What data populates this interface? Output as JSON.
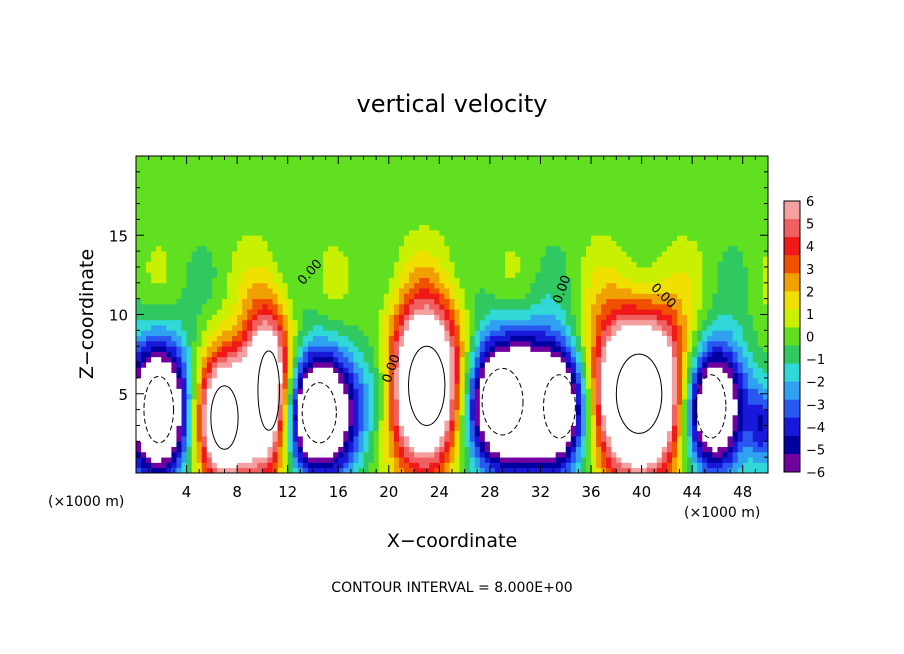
{
  "chart_data": {
    "type": "heatmap",
    "title": "vertical velocity",
    "xlabel": "X−coordinate",
    "ylabel": "Z−coordinate",
    "x_unit_left": "(×1000 m)",
    "x_unit_right": "(×1000 m)",
    "footer": "CONTOUR INTERVAL = 8.000E+00",
    "xlim": [
      0,
      50
    ],
    "ylim": [
      0,
      20
    ],
    "x_ticks": [
      4,
      8,
      12,
      16,
      20,
      24,
      28,
      32,
      36,
      40,
      44,
      48
    ],
    "y_ticks": [
      5,
      10,
      15
    ],
    "contour_label": "0.00",
    "colorbar": {
      "ticks": [
        "6",
        "5",
        "4",
        "3",
        "2",
        "1",
        "0",
        "−1",
        "−2",
        "−3",
        "−4",
        "−5",
        "−6"
      ],
      "colors": [
        "#f4a0a0",
        "#f06060",
        "#f01818",
        "#f05000",
        "#f0a000",
        "#f0e000",
        "#c8f000",
        "#60e020",
        "#30c860",
        "#30d8d8",
        "#30a0f0",
        "#2858f0",
        "#1818d8",
        "#0000a0",
        "#7000a0"
      ]
    },
    "cells": [
      {
        "xc": 1.8,
        "zc": 4.0,
        "rx": 2.6,
        "rz": 4.2,
        "amp": -12
      },
      {
        "xc": 7.0,
        "zc": 3.5,
        "rx": 2.4,
        "rz": 4.0,
        "amp": 12
      },
      {
        "xc": 10.5,
        "zc": 5.2,
        "rx": 1.9,
        "rz": 5.0,
        "amp": 12
      },
      {
        "xc": 14.5,
        "zc": 3.8,
        "rx": 3.0,
        "rz": 3.8,
        "amp": -12
      },
      {
        "xc": 19.5,
        "zc": 5.5,
        "rx": 1.7,
        "rz": 3.5,
        "amp": -3
      },
      {
        "xc": 23.0,
        "zc": 5.5,
        "rx": 3.2,
        "rz": 5.0,
        "amp": 14
      },
      {
        "xc": 29.0,
        "zc": 4.5,
        "rx": 3.6,
        "rz": 4.2,
        "amp": -12
      },
      {
        "xc": 33.5,
        "zc": 4.2,
        "rx": 2.8,
        "rz": 4.0,
        "amp": -10
      },
      {
        "xc": 39.8,
        "zc": 5.0,
        "rx": 4.0,
        "rz": 5.0,
        "amp": 15
      },
      {
        "xc": 45.5,
        "zc": 4.2,
        "rx": 2.6,
        "rz": 4.0,
        "amp": -12
      },
      {
        "xc": 49.6,
        "zc": 3.0,
        "rx": 1.0,
        "rz": 2.5,
        "amp": -4
      }
    ]
  }
}
